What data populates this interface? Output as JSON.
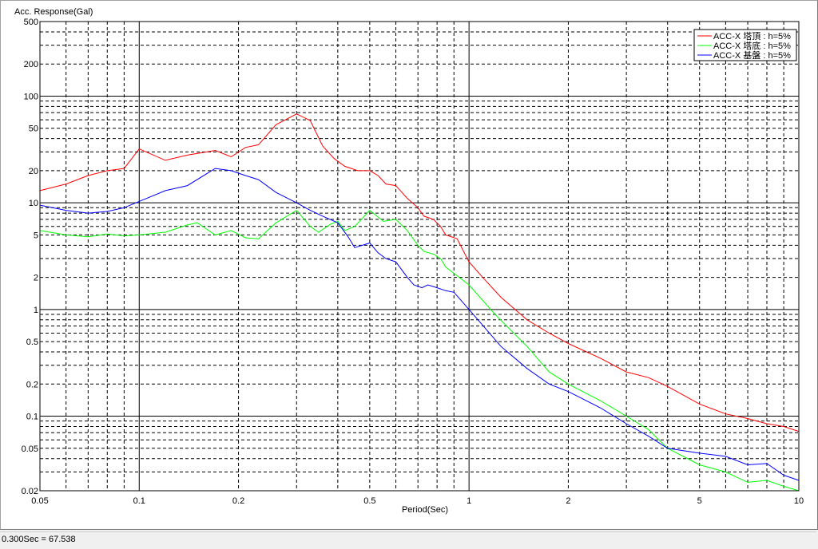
{
  "status_bar": {
    "text": "0.300Sec = 67.538"
  },
  "chart_data": {
    "type": "line",
    "ylabel": "Acc. Response(Gal)",
    "xlabel": "Period(Sec)",
    "x_scale": "log",
    "y_scale": "log",
    "xlim": [
      0.05,
      10
    ],
    "ylim": [
      0.02,
      500
    ],
    "grid": true,
    "legend_position": "top-right",
    "x_tick_labels": [
      "0.05",
      "0.1",
      "0.2",
      "0.5",
      "1",
      "2",
      "5",
      "10"
    ],
    "y_tick_labels": [
      "500",
      "200",
      "100",
      "50",
      "20",
      "10",
      "5",
      "2",
      "1",
      "0.5",
      "0.2",
      "0.1",
      "0.05",
      "0.02"
    ],
    "series": [
      {
        "name": "ACC-X 塔頂 : h=5%",
        "color": "#ff0000",
        "points": [
          [
            0.05,
            13
          ],
          [
            0.06,
            15
          ],
          [
            0.07,
            18
          ],
          [
            0.08,
            20
          ],
          [
            0.09,
            21
          ],
          [
            0.1,
            32
          ],
          [
            0.12,
            25
          ],
          [
            0.14,
            28
          ],
          [
            0.17,
            31
          ],
          [
            0.19,
            27
          ],
          [
            0.21,
            33
          ],
          [
            0.23,
            35
          ],
          [
            0.26,
            54
          ],
          [
            0.3,
            68
          ],
          [
            0.33,
            59
          ],
          [
            0.36,
            34
          ],
          [
            0.39,
            26
          ],
          [
            0.42,
            22
          ],
          [
            0.46,
            20
          ],
          [
            0.5,
            20
          ],
          [
            0.53,
            18
          ],
          [
            0.56,
            15
          ],
          [
            0.6,
            14.5
          ],
          [
            0.65,
            11
          ],
          [
            0.7,
            9
          ],
          [
            0.73,
            7.5
          ],
          [
            0.78,
            7
          ],
          [
            0.82,
            6
          ],
          [
            0.85,
            5
          ],
          [
            0.92,
            4.6
          ],
          [
            1,
            2.8
          ],
          [
            1.1,
            2
          ],
          [
            1.25,
            1.3
          ],
          [
            1.5,
            0.8
          ],
          [
            1.75,
            0.6
          ],
          [
            2,
            0.48
          ],
          [
            2.5,
            0.35
          ],
          [
            3,
            0.26
          ],
          [
            3.5,
            0.23
          ],
          [
            4,
            0.19
          ],
          [
            5,
            0.13
          ],
          [
            6,
            0.105
          ],
          [
            7,
            0.095
          ],
          [
            8,
            0.085
          ],
          [
            9,
            0.08
          ],
          [
            10,
            0.072
          ]
        ]
      },
      {
        "name": "ACC-X 塔底 : h=5%",
        "color": "#00ff00",
        "points": [
          [
            0.05,
            5.5
          ],
          [
            0.06,
            5
          ],
          [
            0.07,
            4.8
          ],
          [
            0.08,
            5.1
          ],
          [
            0.09,
            4.9
          ],
          [
            0.1,
            5
          ],
          [
            0.12,
            5.3
          ],
          [
            0.14,
            6.2
          ],
          [
            0.15,
            6.5
          ],
          [
            0.17,
            5
          ],
          [
            0.19,
            5.5
          ],
          [
            0.21,
            4.7
          ],
          [
            0.23,
            4.6
          ],
          [
            0.26,
            6.5
          ],
          [
            0.3,
            8.5
          ],
          [
            0.33,
            6
          ],
          [
            0.35,
            5.3
          ],
          [
            0.38,
            6.3
          ],
          [
            0.4,
            6.7
          ],
          [
            0.42,
            5.5
          ],
          [
            0.45,
            6
          ],
          [
            0.5,
            8.5
          ],
          [
            0.55,
            6.7
          ],
          [
            0.6,
            7
          ],
          [
            0.65,
            5.5
          ],
          [
            0.7,
            4
          ],
          [
            0.73,
            3.5
          ],
          [
            0.78,
            3.3
          ],
          [
            0.82,
            3
          ],
          [
            0.85,
            2.5
          ],
          [
            1,
            1.7
          ],
          [
            1.2,
            0.9
          ],
          [
            1.5,
            0.45
          ],
          [
            1.75,
            0.26
          ],
          [
            2,
            0.2
          ],
          [
            2.5,
            0.14
          ],
          [
            3,
            0.1
          ],
          [
            3.5,
            0.075
          ],
          [
            4,
            0.05
          ],
          [
            5,
            0.035
          ],
          [
            6,
            0.03
          ],
          [
            7,
            0.024
          ],
          [
            8,
            0.025
          ],
          [
            9,
            0.022
          ],
          [
            10,
            0.02
          ]
        ]
      },
      {
        "name": "ACC-X 基盤 : h=5%",
        "color": "#0000ff",
        "points": [
          [
            0.05,
            9.5
          ],
          [
            0.06,
            8.5
          ],
          [
            0.07,
            8
          ],
          [
            0.08,
            8.3
          ],
          [
            0.09,
            9
          ],
          [
            0.1,
            10.3
          ],
          [
            0.12,
            13
          ],
          [
            0.14,
            14.5
          ],
          [
            0.17,
            21
          ],
          [
            0.19,
            20
          ],
          [
            0.21,
            18
          ],
          [
            0.23,
            16.5
          ],
          [
            0.26,
            12.5
          ],
          [
            0.3,
            10
          ],
          [
            0.33,
            8.5
          ],
          [
            0.36,
            7.5
          ],
          [
            0.4,
            6.5
          ],
          [
            0.43,
            4.8
          ],
          [
            0.45,
            3.8
          ],
          [
            0.5,
            4.2
          ],
          [
            0.53,
            3.4
          ],
          [
            0.56,
            3
          ],
          [
            0.6,
            2.8
          ],
          [
            0.65,
            2
          ],
          [
            0.68,
            1.7
          ],
          [
            0.72,
            1.6
          ],
          [
            0.75,
            1.7
          ],
          [
            0.8,
            1.6
          ],
          [
            0.85,
            1.5
          ],
          [
            0.9,
            1.45
          ],
          [
            1,
            1
          ],
          [
            1.25,
            0.45
          ],
          [
            1.5,
            0.28
          ],
          [
            1.75,
            0.2
          ],
          [
            2,
            0.17
          ],
          [
            2.5,
            0.12
          ],
          [
            3,
            0.085
          ],
          [
            3.5,
            0.065
          ],
          [
            4,
            0.05
          ],
          [
            5,
            0.045
          ],
          [
            6,
            0.042
          ],
          [
            7,
            0.035
          ],
          [
            8,
            0.036
          ],
          [
            9,
            0.028
          ],
          [
            10,
            0.025
          ]
        ]
      }
    ]
  }
}
